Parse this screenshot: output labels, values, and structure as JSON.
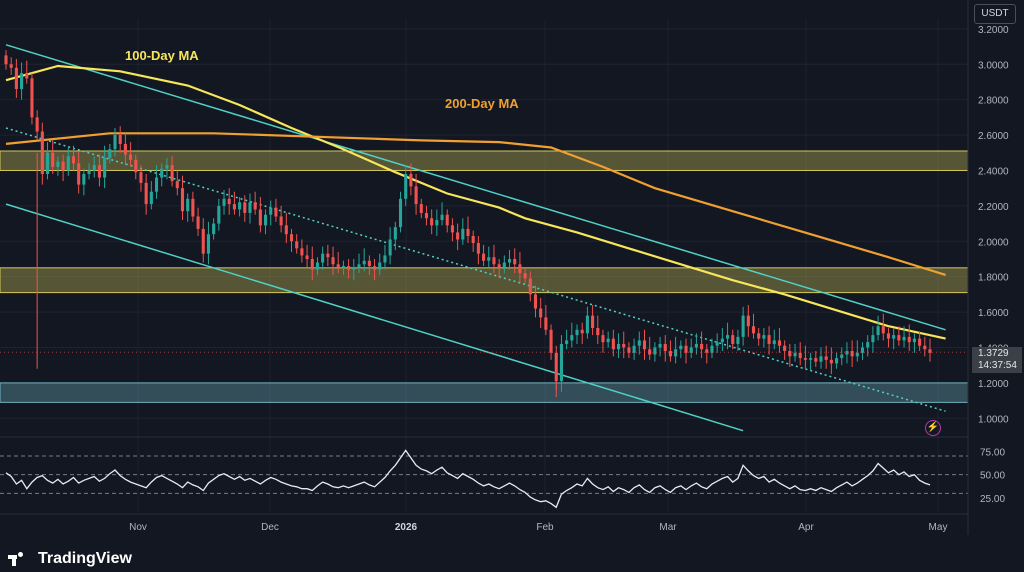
{
  "chart_data": [
    {
      "type": "candlestick",
      "y_axis": {
        "ticks": [
          "3.2000",
          "3.0000",
          "2.8000",
          "2.6000",
          "2.4000",
          "2.2000",
          "2.0000",
          "1.8000",
          "1.6000",
          "1.4000",
          "1.2000",
          "1.0000"
        ],
        "range": [
          0.9,
          3.25
        ],
        "currency": "USDT"
      },
      "x_axis": {
        "ticks": [
          {
            "label": "Nov",
            "bold": false
          },
          {
            "label": "Dec",
            "bold": false
          },
          {
            "label": "2026",
            "bold": true
          },
          {
            "label": "Feb",
            "bold": false
          },
          {
            "label": "Mar",
            "bold": false
          },
          {
            "label": "Apr",
            "bold": false
          },
          {
            "label": "May",
            "bold": false
          }
        ]
      },
      "last_price": {
        "value": "1.3729",
        "countdown": "14:37:54"
      },
      "annotations": [
        {
          "text": "100-Day MA",
          "color": "#f7e55a"
        },
        {
          "text": "200-Day MA",
          "color": "#f0a030"
        }
      ],
      "zones": [
        {
          "from": 2.4,
          "to": 2.51,
          "color": "#d5c95a"
        },
        {
          "from": 1.71,
          "to": 1.85,
          "color": "#d5c95a"
        },
        {
          "from": 1.09,
          "to": 1.2,
          "color": "#6fb4c0"
        }
      ],
      "series": [
        {
          "name": "100-Day MA",
          "color": "#f7e55a",
          "points": [
            [
              0,
              2.91
            ],
            [
              10,
              2.99
            ],
            [
              22,
              2.96
            ],
            [
              35,
              2.88
            ],
            [
              45,
              2.77
            ],
            [
              55,
              2.64
            ],
            [
              65,
              2.52
            ],
            [
              75,
              2.39
            ],
            [
              85,
              2.27
            ],
            [
              95,
              2.19
            ],
            [
              100,
              2.13
            ],
            [
              110,
              2.05
            ],
            [
              120,
              1.96
            ],
            [
              130,
              1.87
            ],
            [
              140,
              1.78
            ],
            [
              150,
              1.7
            ],
            [
              160,
              1.61
            ],
            [
              170,
              1.52
            ],
            [
              181,
              1.45
            ]
          ]
        },
        {
          "name": "200-Day MA",
          "color": "#f0a030",
          "points": [
            [
              0,
              2.55
            ],
            [
              20,
              2.61
            ],
            [
              40,
              2.61
            ],
            [
              60,
              2.59
            ],
            [
              80,
              2.57
            ],
            [
              95,
              2.56
            ],
            [
              105,
              2.53
            ],
            [
              115,
              2.42
            ],
            [
              125,
              2.3
            ],
            [
              140,
              2.17
            ],
            [
              155,
              2.04
            ],
            [
              170,
              1.91
            ],
            [
              181,
              1.81
            ]
          ]
        }
      ],
      "channel": {
        "upper": [
          [
            0,
            3.11
          ],
          [
            181,
            1.5
          ]
        ],
        "lower": [
          [
            0,
            2.21
          ],
          [
            142,
            0.93
          ]
        ],
        "mid": [
          [
            0,
            2.64
          ],
          [
            181,
            1.04
          ]
        ],
        "color": "#4fd1c5"
      },
      "candles_close": [
        3.0,
        2.98,
        2.86,
        2.95,
        2.92,
        2.7,
        2.62,
        2.38,
        2.5,
        2.42,
        2.45,
        2.4,
        2.48,
        2.44,
        2.32,
        2.38,
        2.4,
        2.43,
        2.36,
        2.47,
        2.52,
        2.6,
        2.55,
        2.49,
        2.46,
        2.39,
        2.33,
        2.21,
        2.28,
        2.36,
        2.41,
        2.43,
        2.34,
        2.3,
        2.17,
        2.24,
        2.14,
        2.07,
        1.93,
        2.04,
        2.1,
        2.2,
        2.24,
        2.21,
        2.18,
        2.22,
        2.16,
        2.22,
        2.18,
        2.09,
        2.15,
        2.19,
        2.14,
        2.09,
        2.04,
        2.0,
        1.96,
        1.92,
        1.9,
        1.84,
        1.88,
        1.93,
        1.91,
        1.87,
        1.85,
        1.86,
        1.84,
        1.85,
        1.87,
        1.89,
        1.86,
        1.84,
        1.88,
        1.92,
        2.01,
        2.08,
        2.24,
        2.38,
        2.31,
        2.21,
        2.16,
        2.13,
        2.09,
        2.12,
        2.15,
        2.09,
        2.05,
        2.01,
        2.07,
        2.03,
        1.99,
        1.93,
        1.89,
        1.91,
        1.87,
        1.85,
        1.88,
        1.9,
        1.87,
        1.82,
        1.79,
        1.7,
        1.62,
        1.57,
        1.5,
        1.37,
        1.21,
        1.42,
        1.44,
        1.47,
        1.5,
        1.48,
        1.58,
        1.51,
        1.47,
        1.43,
        1.45,
        1.39,
        1.42,
        1.4,
        1.37,
        1.41,
        1.44,
        1.39,
        1.36,
        1.4,
        1.42,
        1.38,
        1.35,
        1.39,
        1.41,
        1.37,
        1.4,
        1.42,
        1.39,
        1.37,
        1.41,
        1.43,
        1.45,
        1.47,
        1.42,
        1.46,
        1.58,
        1.52,
        1.48,
        1.45,
        1.47,
        1.42,
        1.44,
        1.41,
        1.38,
        1.35,
        1.37,
        1.34,
        1.33,
        1.34,
        1.32,
        1.35,
        1.33,
        1.31,
        1.34,
        1.36,
        1.38,
        1.35,
        1.37,
        1.4,
        1.43,
        1.47,
        1.52,
        1.48,
        1.45,
        1.47,
        1.44,
        1.46,
        1.43,
        1.45,
        1.41,
        1.39,
        1.37
      ]
    },
    {
      "type": "line",
      "name": "RSI",
      "y_axis": {
        "ticks": [
          "75.00",
          "50.00",
          "25.00"
        ],
        "range": [
          10,
          85
        ]
      },
      "levels": [
        70,
        50,
        30
      ],
      "color": "#e8eaf0",
      "values": [
        52,
        48,
        40,
        44,
        35,
        42,
        47,
        49,
        44,
        41,
        45,
        40,
        43,
        47,
        41,
        44,
        46,
        48,
        43,
        46,
        51,
        55,
        49,
        45,
        42,
        40,
        38,
        36,
        42,
        47,
        49,
        46,
        43,
        40,
        36,
        42,
        39,
        37,
        33,
        41,
        45,
        49,
        51,
        48,
        45,
        48,
        44,
        46,
        43,
        40,
        44,
        47,
        45,
        42,
        40,
        38,
        37,
        35,
        35,
        33,
        38,
        42,
        40,
        37,
        36,
        38,
        36,
        38,
        40,
        42,
        39,
        37,
        42,
        47,
        54,
        60,
        68,
        76,
        68,
        60,
        56,
        54,
        51,
        55,
        58,
        52,
        49,
        46,
        51,
        48,
        45,
        41,
        38,
        40,
        37,
        35,
        38,
        41,
        38,
        34,
        31,
        26,
        23,
        21,
        22,
        19,
        15,
        29,
        33,
        36,
        40,
        38,
        46,
        40,
        36,
        34,
        37,
        32,
        36,
        34,
        31,
        36,
        39,
        34,
        31,
        36,
        38,
        34,
        31,
        36,
        38,
        34,
        38,
        41,
        37,
        35,
        40,
        43,
        46,
        48,
        42,
        46,
        60,
        54,
        49,
        46,
        48,
        42,
        45,
        41,
        38,
        35,
        38,
        34,
        33,
        35,
        33,
        36,
        34,
        32,
        36,
        39,
        42,
        38,
        41,
        45,
        49,
        54,
        62,
        57,
        52,
        55,
        50,
        53,
        48,
        50,
        44,
        41,
        39
      ]
    }
  ],
  "branding": {
    "name": "TradingView"
  }
}
